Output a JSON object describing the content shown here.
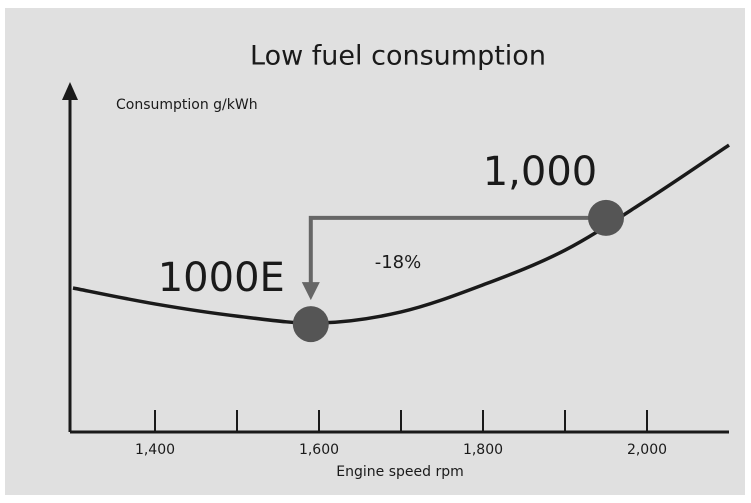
{
  "chart_data": {
    "type": "line",
    "title": "Low fuel consumption",
    "ylabel": "Consumption g/kWh",
    "xlabel": "Engine speed rpm",
    "x": [
      1300,
      1400,
      1500,
      1600,
      1700,
      1800,
      1900,
      2000,
      2100
    ],
    "values": [
      41.5,
      36.9,
      33.4,
      31.4,
      34.6,
      42.4,
      52.4,
      66.9,
      82.7
    ],
    "color": "#1a1a1a",
    "xlim": [
      1300,
      2100
    ],
    "ylim": [
      0,
      100
    ],
    "xticks": [
      {
        "value": 1400,
        "label": "1,400"
      },
      {
        "value": 1600,
        "label": "1,600"
      },
      {
        "value": 1800,
        "label": "1,800"
      },
      {
        "value": 2000,
        "label": "2,000"
      }
    ],
    "xminor_ticks": [
      1500,
      1700,
      1900
    ],
    "points": [
      {
        "label": "1000E",
        "x": 1590,
        "y": 31.1
      },
      {
        "label": "1,000",
        "x": 1950,
        "y": 61.7
      }
    ],
    "point_color": "#555555",
    "annotation": "-18%"
  }
}
